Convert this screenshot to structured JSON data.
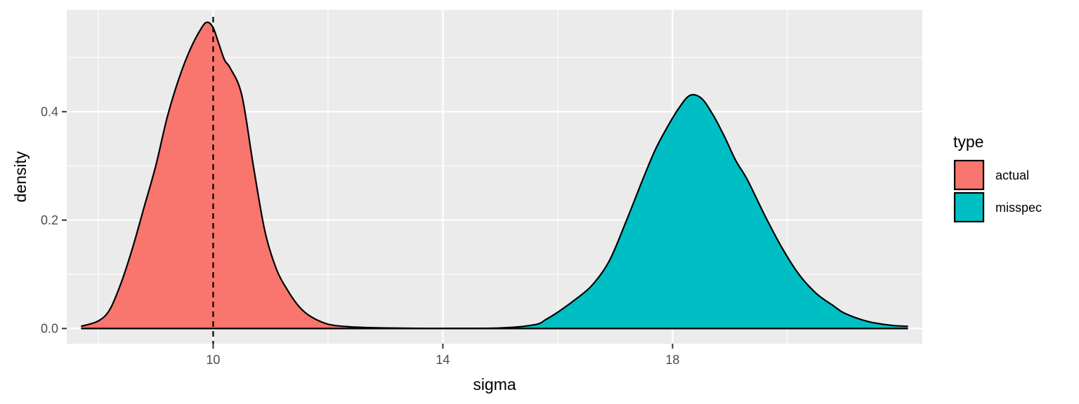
{
  "chart_data": {
    "type": "area",
    "xlabel": "sigma",
    "ylabel": "density",
    "xlim": [
      7.45,
      22.35
    ],
    "ylim": [
      -0.028,
      0.588
    ],
    "x_ticks": [
      10,
      14,
      18
    ],
    "x_tick_labels": [
      "10",
      "14",
      "18"
    ],
    "x_minor_ticks": [
      8,
      12,
      16,
      20
    ],
    "y_ticks": [
      0.0,
      0.2,
      0.4
    ],
    "y_tick_labels": [
      "0.0",
      "0.2",
      "0.4"
    ],
    "y_minor_ticks": [
      0.1,
      0.3,
      0.5
    ],
    "grid": true,
    "reference_line": {
      "x": 10,
      "style": "dashed",
      "color": "#000000"
    },
    "legend": {
      "title": "type",
      "position": "right",
      "entries": [
        {
          "label": "actual",
          "color": "#F8766D"
        },
        {
          "label": "misspec",
          "color": "#00BFC4"
        }
      ]
    },
    "series": [
      {
        "name": "actual",
        "color": "#F8766D",
        "x": [
          7.7,
          8.0,
          8.2,
          8.4,
          8.6,
          8.8,
          9.0,
          9.2,
          9.4,
          9.6,
          9.8,
          9.9,
          10.0,
          10.1,
          10.2,
          10.3,
          10.5,
          10.7,
          10.9,
          11.1,
          11.3,
          11.5,
          11.7,
          12.0,
          12.4,
          13.0,
          14.0,
          15.0
        ],
        "values": [
          0.004,
          0.014,
          0.035,
          0.085,
          0.15,
          0.225,
          0.3,
          0.39,
          0.46,
          0.515,
          0.555,
          0.565,
          0.555,
          0.525,
          0.495,
          0.48,
          0.43,
          0.3,
          0.18,
          0.11,
          0.07,
          0.04,
          0.022,
          0.008,
          0.003,
          0.001,
          0.0,
          0.0
        ]
      },
      {
        "name": "misspec",
        "color": "#00BFC4",
        "x": [
          14.0,
          15.0,
          15.6,
          15.8,
          16.0,
          16.3,
          16.6,
          16.9,
          17.2,
          17.5,
          17.7,
          17.9,
          18.1,
          18.3,
          18.5,
          18.7,
          18.9,
          19.1,
          19.3,
          19.6,
          19.9,
          20.2,
          20.5,
          20.8,
          21.0,
          21.4,
          21.8,
          22.1
        ],
        "values": [
          0.0,
          0.001,
          0.007,
          0.017,
          0.03,
          0.053,
          0.08,
          0.125,
          0.2,
          0.28,
          0.33,
          0.37,
          0.405,
          0.43,
          0.425,
          0.395,
          0.355,
          0.31,
          0.275,
          0.21,
          0.15,
          0.1,
          0.065,
          0.042,
          0.028,
          0.013,
          0.006,
          0.004
        ]
      }
    ]
  }
}
